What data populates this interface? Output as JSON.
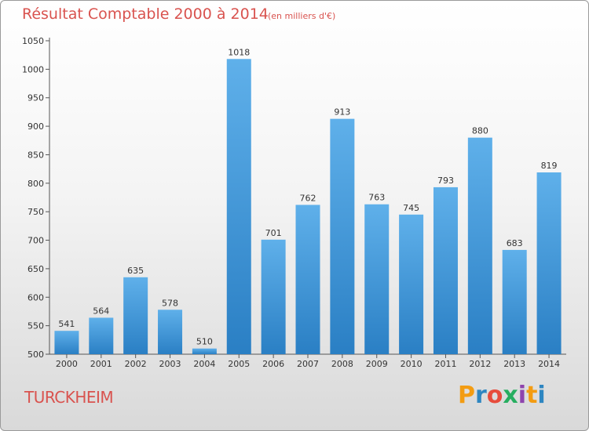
{
  "header": {
    "title": "Résultat Comptable 2000 à 2014",
    "subtitle": "(en milliers d'€)"
  },
  "footer": {
    "commune": "TURCKHEIM",
    "logo_text": "Proxiti",
    "logo_letters": [
      "P",
      "r",
      "o",
      "x",
      "i",
      "t",
      "i"
    ],
    "logo_colors": [
      "#f39c12",
      "#2e86c1",
      "#e74c3c",
      "#27ae60",
      "#8e44ad",
      "#f39c12",
      "#2e86c1"
    ]
  },
  "chart_data": {
    "type": "bar",
    "title": "Résultat Comptable 2000 à 2014",
    "subtitle": "(en milliers d'€)",
    "xlabel": "",
    "ylabel": "",
    "categories": [
      "2000",
      "2001",
      "2002",
      "2003",
      "2004",
      "2005",
      "2006",
      "2007",
      "2008",
      "2009",
      "2010",
      "2011",
      "2012",
      "2013",
      "2014"
    ],
    "values": [
      541,
      564,
      635,
      578,
      510,
      1018,
      701,
      762,
      913,
      763,
      745,
      793,
      880,
      683,
      819
    ],
    "ylim": [
      500,
      1050
    ],
    "yticks": [
      500,
      550,
      600,
      650,
      700,
      750,
      800,
      850,
      900,
      950,
      1000,
      1050
    ],
    "ytick_labels": [
      "500",
      "550",
      "600",
      "650",
      "700",
      "750",
      "800",
      "850",
      "900",
      "950",
      "1000",
      "1050"
    ],
    "grid": false,
    "legend": "none",
    "colors": {
      "bar_top": "#5fb0ea",
      "bar_bottom": "#2a7fc4",
      "axis": "#555555"
    }
  }
}
